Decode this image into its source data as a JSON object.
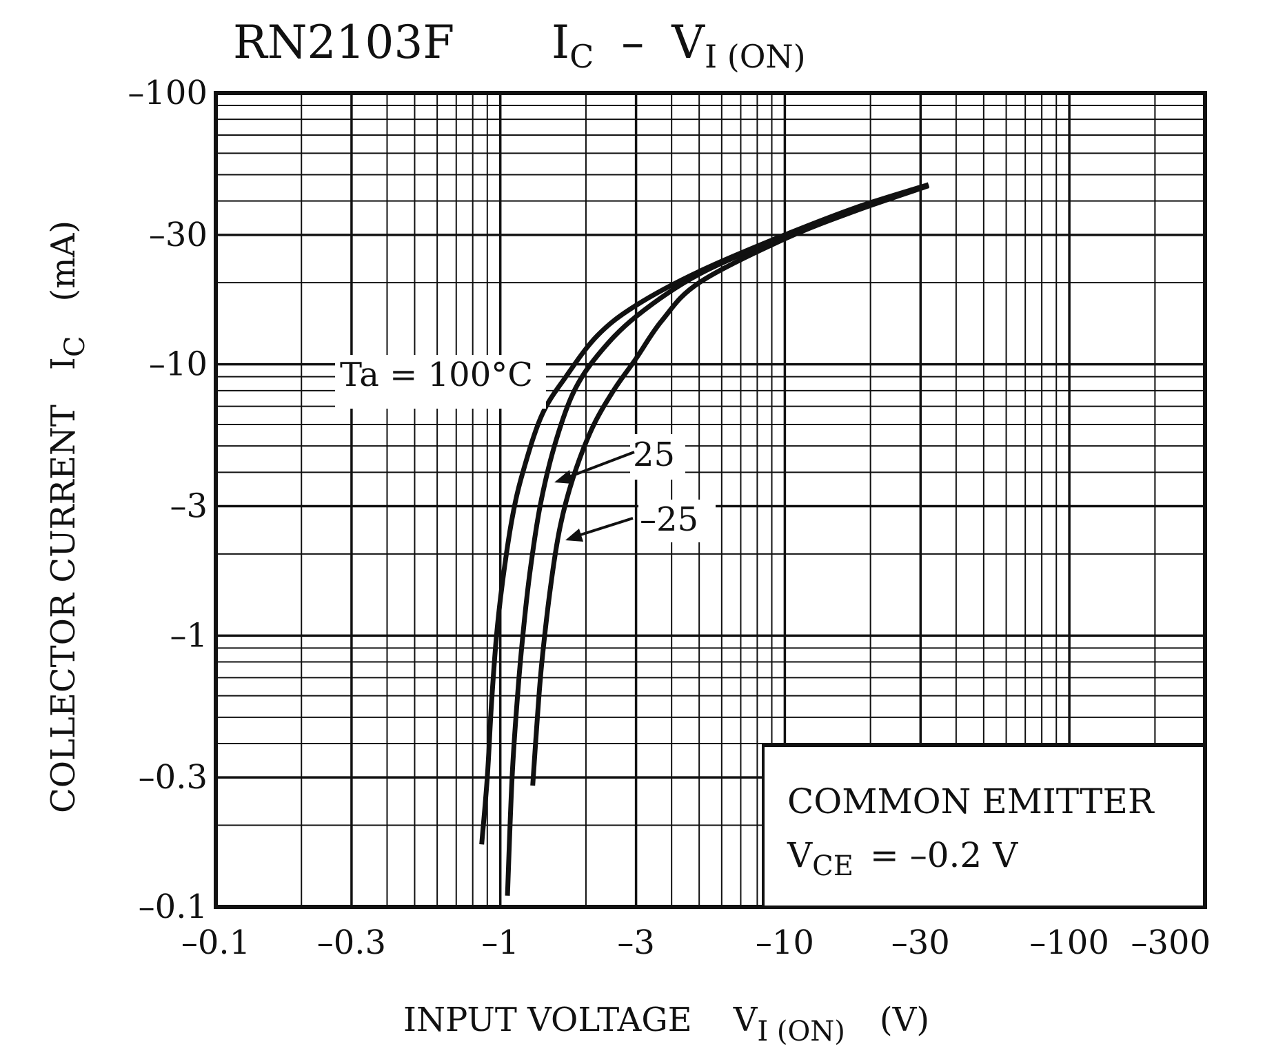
{
  "chart_data": {
    "type": "line",
    "title_part": "RN2103F",
    "title_formula": {
      "main": "I",
      "sub_main": "C",
      "dash": "–",
      "rhs": "V",
      "sub_rhs": "I (ON)"
    },
    "x_axis": {
      "label": "INPUT VOLTAGE",
      "label_symbol": "V",
      "label_sub": "I (ON)",
      "label_unit": "(V)",
      "scale": "log",
      "range": [
        -0.1,
        -300
      ],
      "ticks": [
        {
          "value": -0.1,
          "label": "–0.1"
        },
        {
          "value": -0.3,
          "label": "–0.3"
        },
        {
          "value": -1,
          "label": "–1"
        },
        {
          "value": -3,
          "label": "–3"
        },
        {
          "value": -10,
          "label": "–10"
        },
        {
          "value": -30,
          "label": "–30"
        },
        {
          "value": -100,
          "label": "–100"
        },
        {
          "value": -300,
          "label": "–300"
        }
      ]
    },
    "y_axis": {
      "label": "COLLECTOR CURRENT",
      "label_symbol": "I",
      "label_sub": "C",
      "label_unit": "(mA)",
      "scale": "log",
      "range": [
        -0.1,
        -100
      ],
      "ticks": [
        {
          "value": -0.1,
          "label": "–0.1"
        },
        {
          "value": -0.3,
          "label": "–0.3"
        },
        {
          "value": -1,
          "label": "–1"
        },
        {
          "value": -3,
          "label": "–3"
        },
        {
          "value": -10,
          "label": "–10"
        },
        {
          "value": -30,
          "label": "–30"
        },
        {
          "value": -100,
          "label": "–100"
        }
      ]
    },
    "grid": true,
    "series": [
      {
        "name": "Ta = 100°C",
        "label_text": "Ta = 100°C",
        "points": [
          [
            -0.86,
            -0.17
          ],
          [
            -0.9,
            -0.3
          ],
          [
            -0.93,
            -0.55
          ],
          [
            -0.97,
            -1.0
          ],
          [
            -1.02,
            -1.6
          ],
          [
            -1.1,
            -2.7
          ],
          [
            -1.2,
            -4.0
          ],
          [
            -1.4,
            -6.5
          ],
          [
            -1.7,
            -9.0
          ],
          [
            -2.2,
            -12.8
          ],
          [
            -3.0,
            -16.5
          ],
          [
            -5.0,
            -22.0
          ],
          [
            -10.0,
            -30.0
          ],
          [
            -18.0,
            -38.0
          ],
          [
            -30.0,
            -45.0
          ]
        ]
      },
      {
        "name": "25",
        "label_text": "25",
        "points": [
          [
            -1.06,
            -0.11
          ],
          [
            -1.1,
            -0.3
          ],
          [
            -1.15,
            -0.6
          ],
          [
            -1.2,
            -1.0
          ],
          [
            -1.27,
            -1.7
          ],
          [
            -1.38,
            -3.0
          ],
          [
            -1.55,
            -5.0
          ],
          [
            -1.8,
            -7.8
          ],
          [
            -2.2,
            -10.8
          ],
          [
            -3.0,
            -15.0
          ],
          [
            -5.0,
            -21.5
          ],
          [
            -10.0,
            -29.5
          ],
          [
            -18.0,
            -37.5
          ],
          [
            -32.0,
            -46.0
          ]
        ]
      },
      {
        "name": "-25",
        "label_text": "–25",
        "points": [
          [
            -1.3,
            -0.28
          ],
          [
            -1.35,
            -0.5
          ],
          [
            -1.4,
            -0.8
          ],
          [
            -1.5,
            -1.5
          ],
          [
            -1.62,
            -2.5
          ],
          [
            -1.8,
            -3.8
          ],
          [
            -2.1,
            -5.8
          ],
          [
            -2.5,
            -8.0
          ],
          [
            -3.0,
            -10.5
          ],
          [
            -3.7,
            -14.5
          ],
          [
            -5.0,
            -20.0
          ],
          [
            -10.0,
            -29.0
          ],
          [
            -18.0,
            -37.0
          ],
          [
            -32.0,
            -45.5
          ]
        ]
      }
    ],
    "annotations": [
      {
        "text": "25",
        "points_to_series": "25"
      },
      {
        "text": "–25",
        "points_to_series": "-25"
      }
    ],
    "conditions_box": {
      "line1": "COMMON EMITTER",
      "line2_symbol": "V",
      "line2_sub": "CE",
      "line2_rest": "= –0.2 V"
    }
  }
}
